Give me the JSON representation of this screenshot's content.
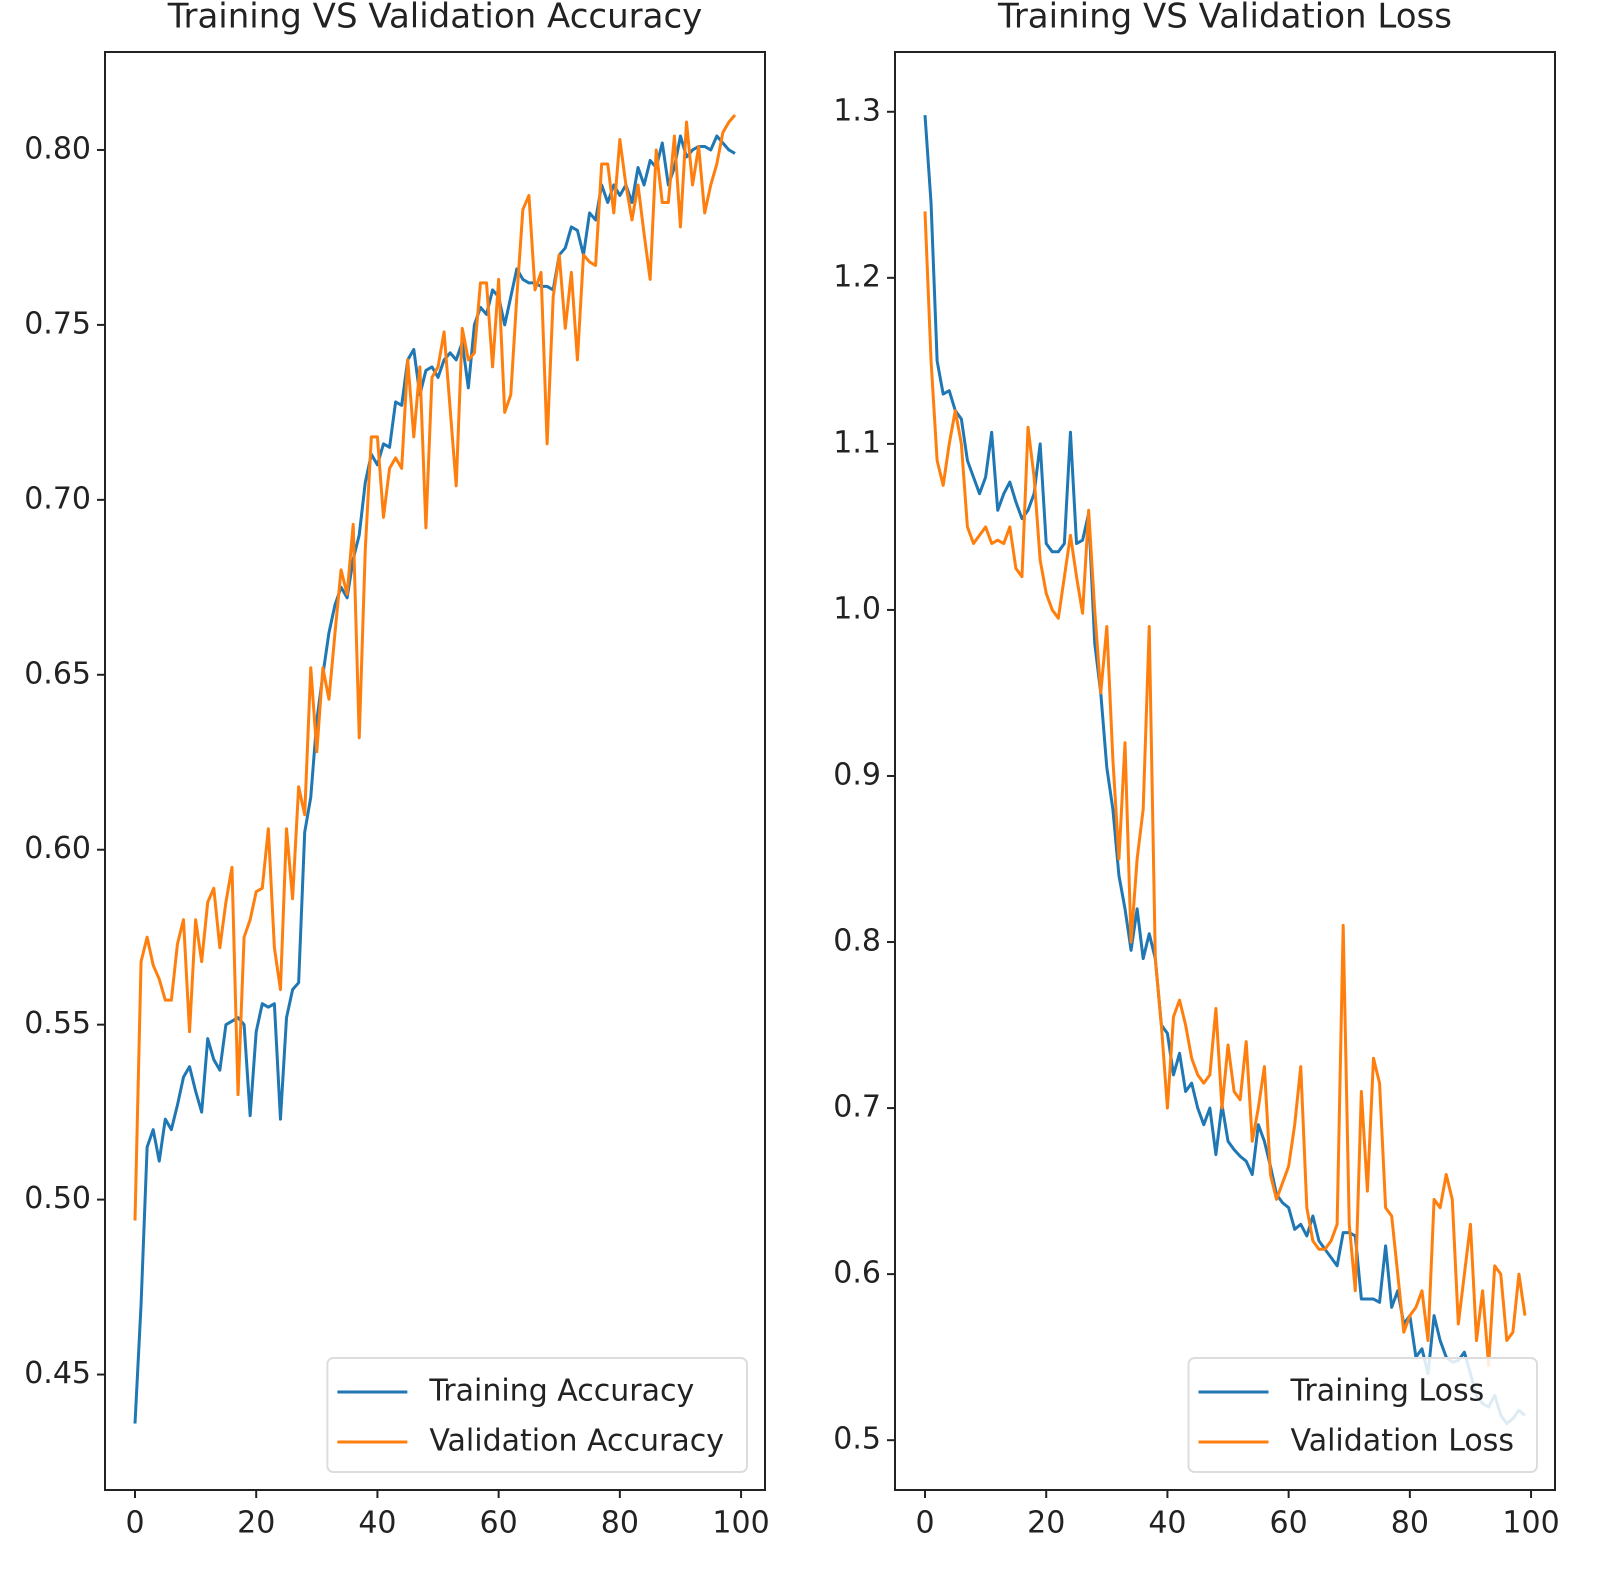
{
  "chart_data": [
    {
      "type": "line",
      "title": "Training VS Validation Accuracy",
      "x": [
        0,
        1,
        2,
        3,
        4,
        5,
        6,
        7,
        8,
        9,
        10,
        11,
        12,
        13,
        14,
        15,
        16,
        17,
        18,
        19,
        20,
        21,
        22,
        23,
        24,
        25,
        26,
        27,
        28,
        29,
        30,
        31,
        32,
        33,
        34,
        35,
        36,
        37,
        38,
        39,
        40,
        41,
        42,
        43,
        44,
        45,
        46,
        47,
        48,
        49,
        50,
        51,
        52,
        53,
        54,
        55,
        56,
        57,
        58,
        59,
        60,
        61,
        62,
        63,
        64,
        65,
        66,
        67,
        68,
        69,
        70,
        71,
        72,
        73,
        74,
        75,
        76,
        77,
        78,
        79,
        80,
        81,
        82,
        83,
        84,
        85,
        86,
        87,
        88,
        89,
        90,
        91,
        92,
        93,
        94,
        95,
        96,
        97,
        98,
        99
      ],
      "series": [
        {
          "name": "Training Accuracy",
          "color": "#1f77b4",
          "values": [
            0.436,
            0.47,
            0.515,
            0.52,
            0.511,
            0.523,
            0.52,
            0.527,
            0.535,
            0.538,
            0.531,
            0.525,
            0.546,
            0.54,
            0.537,
            0.55,
            0.551,
            0.552,
            0.55,
            0.524,
            0.548,
            0.556,
            0.555,
            0.556,
            0.523,
            0.552,
            0.56,
            0.562,
            0.605,
            0.615,
            0.637,
            0.65,
            0.662,
            0.67,
            0.675,
            0.672,
            0.683,
            0.69,
            0.705,
            0.713,
            0.71,
            0.716,
            0.715,
            0.728,
            0.727,
            0.74,
            0.743,
            0.73,
            0.737,
            0.738,
            0.735,
            0.74,
            0.742,
            0.74,
            0.745,
            0.732,
            0.75,
            0.755,
            0.753,
            0.76,
            0.758,
            0.75,
            0.758,
            0.766,
            0.763,
            0.762,
            0.762,
            0.761,
            0.761,
            0.76,
            0.77,
            0.772,
            0.778,
            0.777,
            0.77,
            0.782,
            0.78,
            0.79,
            0.785,
            0.79,
            0.787,
            0.79,
            0.785,
            0.795,
            0.79,
            0.797,
            0.795,
            0.802,
            0.79,
            0.795,
            0.804,
            0.798,
            0.8,
            0.801,
            0.801,
            0.8,
            0.804,
            0.802,
            0.8,
            0.799
          ]
        },
        {
          "name": "Validation Accuracy",
          "color": "#ff7f0e",
          "values": [
            0.494,
            0.568,
            0.575,
            0.567,
            0.563,
            0.557,
            0.557,
            0.573,
            0.58,
            0.548,
            0.58,
            0.568,
            0.585,
            0.589,
            0.572,
            0.585,
            0.595,
            0.53,
            0.575,
            0.58,
            0.588,
            0.589,
            0.606,
            0.572,
            0.56,
            0.606,
            0.586,
            0.618,
            0.61,
            0.652,
            0.628,
            0.652,
            0.643,
            0.662,
            0.68,
            0.673,
            0.693,
            0.632,
            0.686,
            0.718,
            0.718,
            0.695,
            0.709,
            0.712,
            0.709,
            0.74,
            0.718,
            0.738,
            0.692,
            0.735,
            0.738,
            0.748,
            0.726,
            0.704,
            0.749,
            0.74,
            0.742,
            0.762,
            0.762,
            0.738,
            0.763,
            0.725,
            0.73,
            0.758,
            0.783,
            0.787,
            0.76,
            0.765,
            0.716,
            0.758,
            0.77,
            0.749,
            0.765,
            0.74,
            0.77,
            0.768,
            0.767,
            0.796,
            0.796,
            0.782,
            0.803,
            0.79,
            0.78,
            0.79,
            0.776,
            0.763,
            0.8,
            0.785,
            0.785,
            0.804,
            0.778,
            0.808,
            0.79,
            0.801,
            0.782,
            0.79,
            0.796,
            0.805,
            0.808,
            0.81
          ]
        }
      ],
      "xlim": [
        -4.95,
        103.95
      ],
      "ylim": [
        0.417,
        0.828
      ],
      "xticks": [
        0,
        20,
        40,
        60,
        80,
        100
      ],
      "yticks": [
        0.45,
        {
          "value": 0.5,
          "label": "0.50"
        },
        0.55,
        {
          "value": 0.6,
          "label": "0.60"
        },
        0.65,
        {
          "value": 0.7,
          "label": "0.70"
        },
        0.75,
        {
          "value": 0.8,
          "label": "0.80"
        }
      ],
      "legend": "lower right"
    },
    {
      "type": "line",
      "title": "Training VS Validation Loss",
      "x": [
        0,
        1,
        2,
        3,
        4,
        5,
        6,
        7,
        8,
        9,
        10,
        11,
        12,
        13,
        14,
        15,
        16,
        17,
        18,
        19,
        20,
        21,
        22,
        23,
        24,
        25,
        26,
        27,
        28,
        29,
        30,
        31,
        32,
        33,
        34,
        35,
        36,
        37,
        38,
        39,
        40,
        41,
        42,
        43,
        44,
        45,
        46,
        47,
        48,
        49,
        50,
        51,
        52,
        53,
        54,
        55,
        56,
        57,
        58,
        59,
        60,
        61,
        62,
        63,
        64,
        65,
        66,
        67,
        68,
        69,
        70,
        71,
        72,
        73,
        74,
        75,
        76,
        77,
        78,
        79,
        80,
        81,
        82,
        83,
        84,
        85,
        86,
        87,
        88,
        89,
        90,
        91,
        92,
        93,
        94,
        95,
        96,
        97,
        98,
        99
      ],
      "series": [
        {
          "name": "Training Loss",
          "color": "#1f77b4",
          "values": [
            1.298,
            1.245,
            1.15,
            1.13,
            1.132,
            1.12,
            1.115,
            1.09,
            1.08,
            1.07,
            1.08,
            1.107,
            1.06,
            1.07,
            1.077,
            1.065,
            1.055,
            1.06,
            1.07,
            1.1,
            1.04,
            1.035,
            1.035,
            1.04,
            1.107,
            1.04,
            1.042,
            1.058,
            0.98,
            0.95,
            0.905,
            0.88,
            0.84,
            0.82,
            0.795,
            0.82,
            0.79,
            0.805,
            0.79,
            0.75,
            0.745,
            0.72,
            0.733,
            0.71,
            0.715,
            0.7,
            0.69,
            0.7,
            0.672,
            0.702,
            0.68,
            0.675,
            0.671,
            0.668,
            0.66,
            0.69,
            0.68,
            0.665,
            0.648,
            0.643,
            0.64,
            0.627,
            0.63,
            0.623,
            0.635,
            0.62,
            0.615,
            0.61,
            0.605,
            0.625,
            0.625,
            0.623,
            0.585,
            0.585,
            0.585,
            0.583,
            0.617,
            0.58,
            0.59,
            0.57,
            0.575,
            0.55,
            0.555,
            0.54,
            0.575,
            0.56,
            0.55,
            0.547,
            0.548,
            0.553,
            0.54,
            0.527,
            0.522,
            0.52,
            0.527,
            0.515,
            0.51,
            0.513,
            0.518,
            0.515
          ]
        },
        {
          "name": "Validation Loss",
          "color": "#ff7f0e",
          "values": [
            1.24,
            1.15,
            1.09,
            1.075,
            1.1,
            1.12,
            1.1,
            1.05,
            1.04,
            1.045,
            1.05,
            1.04,
            1.042,
            1.04,
            1.05,
            1.025,
            1.02,
            1.11,
            1.08,
            1.03,
            1.01,
            1.0,
            0.995,
            1.02,
            1.045,
            1.02,
            0.998,
            1.06,
            1.0,
            0.95,
            0.99,
            0.91,
            0.85,
            0.92,
            0.8,
            0.85,
            0.88,
            0.99,
            0.79,
            0.75,
            0.7,
            0.755,
            0.765,
            0.75,
            0.73,
            0.72,
            0.715,
            0.72,
            0.76,
            0.7,
            0.738,
            0.71,
            0.705,
            0.74,
            0.68,
            0.7,
            0.725,
            0.66,
            0.645,
            0.655,
            0.665,
            0.69,
            0.725,
            0.64,
            0.62,
            0.615,
            0.615,
            0.62,
            0.63,
            0.81,
            0.63,
            0.59,
            0.71,
            0.65,
            0.73,
            0.715,
            0.64,
            0.635,
            0.6,
            0.565,
            0.575,
            0.58,
            0.59,
            0.56,
            0.645,
            0.64,
            0.66,
            0.645,
            0.57,
            0.6,
            0.63,
            0.56,
            0.59,
            0.545,
            0.605,
            0.6,
            0.56,
            0.565,
            0.6,
            0.575
          ]
        }
      ],
      "xlim": [
        -4.95,
        103.95
      ],
      "ylim": [
        0.47,
        1.336
      ],
      "xticks": [
        0,
        20,
        40,
        60,
        80,
        100
      ],
      "yticks": [
        0.5,
        0.6,
        0.7,
        0.8,
        0.9,
        {
          "value": 1.0,
          "label": "1.0"
        },
        1.1,
        1.2,
        1.3
      ],
      "legend": "lower right"
    }
  ]
}
